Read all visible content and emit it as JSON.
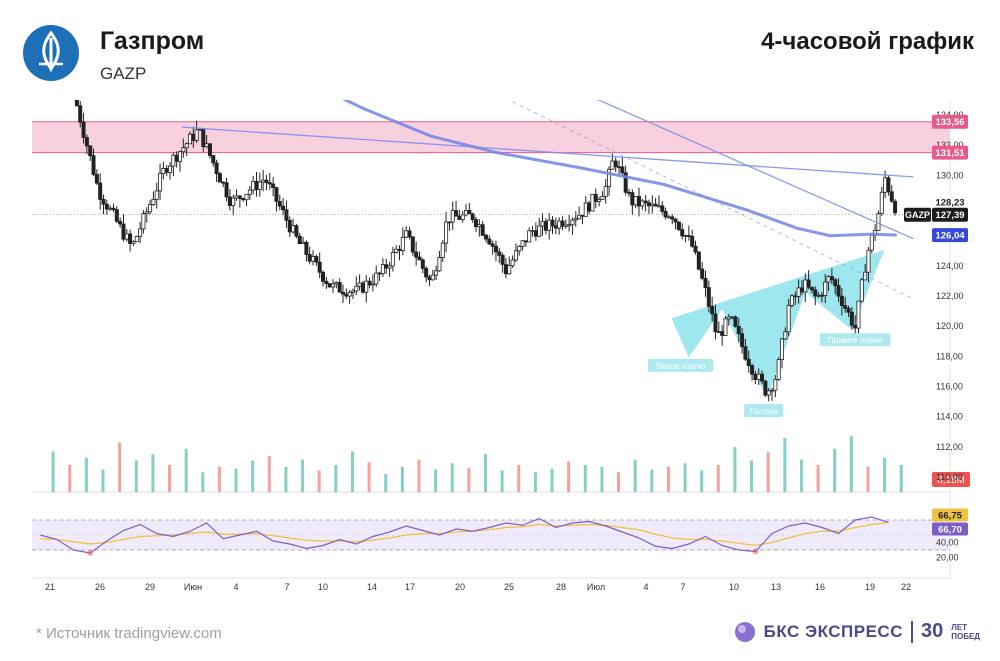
{
  "header": {
    "company": "Газпром",
    "ticker": "GAZP",
    "period": "4-часовой график"
  },
  "footer": {
    "source": "*  Источник tradingview.com",
    "brand": "БКС ЭКСПРЕСС",
    "anniversary_number": "30",
    "anniversary_line1": "ЛЕТ",
    "anniversary_line2": "ПОБЕД"
  },
  "colors": {
    "bull": "#26a69a",
    "bear": "#ef5350",
    "zone": "#f8c8d8",
    "zone_line": "#e85a8a",
    "ma": "#6f85e8",
    "trend": "#7d8ef0",
    "pattern": "#7fe0ea",
    "rsi": "#7b5fc7",
    "rsi_ma": "#f0c040",
    "brand": "#4a4a8a",
    "logo": "#1d70b8"
  },
  "chart_data": {
    "type": "candlestick",
    "title": "4-часовой график",
    "symbol": "GAZP",
    "x_ticks": [
      "21",
      "26",
      "29",
      "Июн",
      "4",
      "7",
      "10",
      "14",
      "17",
      "20",
      "25",
      "28",
      "Июл",
      "4",
      "7",
      "10",
      "13",
      "16",
      "19",
      "22"
    ],
    "y_ticks": [
      110,
      112,
      114,
      116,
      118,
      120,
      122,
      124,
      126,
      128,
      130,
      132,
      134
    ],
    "ylim": [
      109,
      135
    ],
    "price_labels": [
      {
        "text": "133,56",
        "value": 133.56,
        "kind": "zone"
      },
      {
        "text": "131,51",
        "value": 131.51,
        "kind": "zone"
      },
      {
        "text": "128,23",
        "value": 128.23,
        "kind": "plain"
      },
      {
        "text": "127,39",
        "value": 127.39,
        "kind": "last"
      },
      {
        "text": "126,04",
        "value": 126.04,
        "kind": "ma"
      }
    ],
    "last_label": "GAZP",
    "resistance_zone": [
      131.51,
      133.56
    ],
    "annotations": [
      {
        "text": "Левое плечо",
        "x": 39,
        "y": 117.3
      },
      {
        "text": "Голова",
        "x": 44,
        "y": 114.3
      },
      {
        "text": "Правое плечо",
        "x": 49.5,
        "y": 119.0
      }
    ],
    "pattern_polygon": [
      [
        38.5,
        120.5
      ],
      [
        39.5,
        118.0
      ],
      [
        41.5,
        121.2
      ],
      [
        44.2,
        115.3
      ],
      [
        46.5,
        122.3
      ],
      [
        49.3,
        119.8
      ],
      [
        51.2,
        125.0
      ]
    ],
    "trendlines": [
      {
        "x1": 9,
        "y1": 133.2,
        "x2": 53,
        "y2": 129.9,
        "dashed": false
      },
      {
        "x1": 31,
        "y1": 136.5,
        "x2": 53,
        "y2": 125.8,
        "dashed": false
      },
      {
        "x1": 25,
        "y1": 137,
        "x2": 53,
        "y2": 121.8,
        "dashed": true
      }
    ],
    "moving_average": [
      [
        16,
        136.5
      ],
      [
        20,
        134.4
      ],
      [
        24,
        132.6
      ],
      [
        28,
        131.5
      ],
      [
        33,
        130.5
      ],
      [
        38,
        129.4
      ],
      [
        43,
        127.7
      ],
      [
        46,
        126.5
      ],
      [
        48,
        126.0
      ],
      [
        50.5,
        126.1
      ],
      [
        52,
        126.04
      ]
    ],
    "price_path": [
      [
        2.5,
        135.5
      ],
      [
        4,
        129
      ],
      [
        6,
        125.2
      ],
      [
        8,
        130.5
      ],
      [
        10,
        133
      ],
      [
        12,
        128.2
      ],
      [
        14,
        129.8
      ],
      [
        16,
        125.6
      ],
      [
        18,
        122.6
      ],
      [
        19.5,
        122.3
      ],
      [
        21,
        123.5
      ],
      [
        22.5,
        126
      ],
      [
        24,
        122.8
      ],
      [
        25,
        127.2
      ],
      [
        26.5,
        127.3
      ],
      [
        27.5,
        125.8
      ],
      [
        28.5,
        123.7
      ],
      [
        30,
        126.3
      ],
      [
        31.5,
        126.8
      ],
      [
        33,
        127.5
      ],
      [
        34.5,
        129.2
      ],
      [
        35,
        131.2
      ],
      [
        36,
        128.3
      ],
      [
        37.5,
        127.8
      ],
      [
        38.5,
        127.4
      ],
      [
        39.7,
        125.3
      ],
      [
        40.5,
        122.3
      ],
      [
        41.2,
        119.3
      ],
      [
        42,
        120.5
      ],
      [
        42.8,
        118.4
      ],
      [
        43.5,
        116.8
      ],
      [
        44.2,
        115.6
      ],
      [
        44.8,
        116.8
      ],
      [
        45.5,
        121.3
      ],
      [
        46.4,
        122.8
      ],
      [
        47.2,
        121.8
      ],
      [
        48,
        123.3
      ],
      [
        48.8,
        121.5
      ],
      [
        49.5,
        119.9
      ],
      [
        50.2,
        124.7
      ],
      [
        50.8,
        126.9
      ],
      [
        51.3,
        129.8
      ],
      [
        51.7,
        128.5
      ],
      [
        52.1,
        127.39
      ]
    ],
    "volume": [
      45,
      30,
      38,
      25,
      55,
      35,
      42,
      30,
      48,
      22,
      28,
      26,
      35,
      40,
      28,
      36,
      24,
      30,
      45,
      33,
      20,
      28,
      36,
      25,
      32,
      27,
      42,
      24,
      30,
      22,
      26,
      34,
      30,
      28,
      22,
      36,
      25,
      28,
      32,
      24,
      30,
      50,
      35,
      44,
      60,
      36,
      30,
      48,
      62,
      28,
      38,
      30
    ],
    "volume_label": "8,18M",
    "rsi_ticks": [
      20,
      40,
      60
    ],
    "rsi_levels": [
      30,
      70
    ],
    "rsi_labels": [
      {
        "text": "66,75",
        "kind": "ma"
      },
      {
        "text": "66,70",
        "kind": "rsi"
      }
    ],
    "rsi": [
      50,
      44,
      30,
      26,
      42,
      56,
      64,
      52,
      48,
      55,
      66,
      45,
      50,
      55,
      42,
      38,
      32,
      36,
      44,
      38,
      48,
      54,
      62,
      56,
      50,
      58,
      55,
      60,
      66,
      63,
      72,
      60,
      66,
      68,
      62,
      54,
      46,
      35,
      32,
      38,
      48,
      36,
      30,
      28,
      52,
      62,
      66,
      60,
      52,
      70,
      74,
      66.7
    ],
    "rsi_ma": [
      45,
      44,
      41,
      38,
      40,
      44,
      48,
      49,
      50,
      52,
      54,
      51,
      51,
      52,
      49,
      46,
      43,
      42,
      42,
      41,
      43,
      46,
      50,
      52,
      52,
      54,
      55,
      57,
      60,
      61,
      64,
      62,
      63,
      64,
      63,
      60,
      57,
      51,
      46,
      44,
      44,
      42,
      39,
      36,
      40,
      46,
      52,
      55,
      55,
      60,
      64,
      66.75
    ]
  }
}
